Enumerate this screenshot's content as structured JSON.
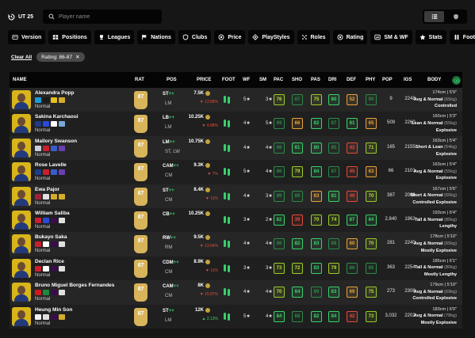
{
  "topbar": {
    "ut_label": "UT 25",
    "search_placeholder": "Player name"
  },
  "filters": [
    {
      "label": "Version",
      "icon": "id-card-icon"
    },
    {
      "label": "Positions",
      "icon": "grid-icon"
    },
    {
      "label": "Leagues",
      "icon": "trophy-icon"
    },
    {
      "label": "Nations",
      "icon": "flag-icon"
    },
    {
      "label": "Clubs",
      "icon": "shield-icon"
    },
    {
      "label": "Price",
      "icon": "coin-icon"
    },
    {
      "label": "PlayStyles",
      "icon": "playstyle-icon"
    },
    {
      "label": "Roles",
      "icon": "roles-icon"
    },
    {
      "label": "Rating",
      "icon": "star-badge-icon"
    },
    {
      "label": "SM & WF",
      "icon": "skill-icon"
    },
    {
      "label": "Stats",
      "icon": "star-icon"
    },
    {
      "label": "Foot",
      "icon": "foot-icon"
    },
    {
      "label": "+",
      "icon": "plus-icon"
    }
  ],
  "active_filters": {
    "clear_label": "Clear All",
    "rating_pill": "Rating: 86-87"
  },
  "columns": [
    "NAME",
    "RAT",
    "POS",
    "PRICE",
    "FOOT",
    "WF",
    "SM",
    "PAC",
    "SHO",
    "PAS",
    "DRI",
    "DEF",
    "PHY",
    "POP",
    "IGS",
    "BODY"
  ],
  "players": [
    {
      "name": "Alexandra Popp",
      "version": "Normal",
      "rating": "87",
      "position": "ST",
      "plus": "++",
      "alt_positions": "LM",
      "price": "7.5K",
      "change": "▼ 13.88%",
      "trend": "down",
      "wf": "5★",
      "sm": "3★",
      "pac": "76",
      "sho": "87",
      "pas": "75",
      "dri": "80",
      "def": "52",
      "phy": "90",
      "pop": "9",
      "igs": "2248",
      "height": "174cm | 5'9\"",
      "body_type": "Avg & Normal",
      "weight": "(65kg)",
      "accelerate": "Controlled",
      "badges": [
        "#1d9bd8",
        "#1a1a1a",
        "#e6c21f",
        "#d6ac2a"
      ]
    },
    {
      "name": "Sakina Karchaoui",
      "version": "Normal",
      "rating": "87",
      "position": "LB",
      "plus": "++",
      "alt_positions": "LM",
      "price": "10.25K",
      "change": "▼ 4.88%",
      "trend": "down",
      "wf": "4★",
      "sm": "5★",
      "pac": "89",
      "sho": "66",
      "pas": "82",
      "dri": "87",
      "def": "81",
      "phy": "65",
      "pop": "509",
      "igs": "2260",
      "height": "160cm | 5'3\"",
      "body_type": "Lean & Normal",
      "weight": "(55kg)",
      "accelerate": "Explosive",
      "badges": [
        "#1f3a8a",
        "#2a4bd7",
        "#ffffff",
        "#7aa8d8"
      ]
    },
    {
      "name": "Mallory Swanson",
      "version": "Normal",
      "rating": "87",
      "position": "LM",
      "plus": "++",
      "alt_positions": "ST, LW",
      "price": "10.75K",
      "change": "",
      "trend": "none",
      "wf": "4★",
      "sm": "4★",
      "pac": "89",
      "sho": "81",
      "pas": "80",
      "dri": "85",
      "def": "42",
      "phy": "71",
      "pop": "165",
      "igs": "2155",
      "height": "163cm | 5'4\"",
      "body_type": "Short & Lean",
      "weight": "(54kg)",
      "accelerate": "Explosive",
      "badges": [
        "#c9ced8",
        "#c8202f",
        "#3b5bcc",
        "#6a3fb0"
      ]
    },
    {
      "name": "Rose Lavelle",
      "version": "Normal",
      "rating": "87",
      "position": "CAM",
      "plus": "++",
      "alt_positions": "CM",
      "price": "9.3K",
      "change": "▼ 7%",
      "trend": "down",
      "wf": "5★",
      "sm": "4★",
      "pac": "86",
      "sho": "79",
      "pas": "84",
      "dri": "87",
      "def": "45",
      "phy": "63",
      "pop": "66",
      "igs": "2101",
      "height": "163cm | 5'4\"",
      "body_type": "Avg & Normal",
      "weight": "(55kg)",
      "accelerate": "Explosive",
      "badges": [
        "#1c3c8c",
        "#c8202f",
        "#3b5bcc",
        "#6a3fb0"
      ]
    },
    {
      "name": "Ewa Pajor",
      "version": "Normal",
      "rating": "87",
      "position": "ST",
      "plus": "++",
      "alt_positions": "CM",
      "price": "8.4K",
      "change": "▼ 11%",
      "trend": "down",
      "wf": "4★",
      "sm": "3★",
      "pac": "89",
      "sho": "89",
      "pas": "63",
      "dri": "81",
      "def": "40",
      "phy": "70",
      "pop": "387",
      "igs": "2006",
      "height": "167cm | 5'6\"",
      "body_type": "Short & Normal",
      "weight": "(60kg)",
      "accelerate": "Controlled Explosive",
      "badges": [
        "#a1233a",
        "#e0e0e0",
        "#d6ac2a",
        "#d6ac2a"
      ]
    },
    {
      "name": "William Saliba",
      "version": "Normal",
      "rating": "87",
      "position": "CB",
      "plus": "++",
      "alt_positions": "",
      "price": "10.25K",
      "change": "",
      "trend": "none",
      "wf": "3★",
      "sm": "2★",
      "pac": "82",
      "sho": "39",
      "pas": "70",
      "dri": "74",
      "def": "87",
      "def_class": "g2",
      "phy": "84",
      "pop": "2,840",
      "igs": "1962",
      "height": "193cm | 6'4\"",
      "body_type": "Tall & Normal",
      "weight": "(85kg)",
      "accelerate": "Lengthy",
      "badges": [
        "#c8202f",
        "#2a4bd7",
        "#3b0c4a",
        "#e0e0e0"
      ]
    },
    {
      "name": "Bukayo Saka",
      "version": "Normal",
      "rating": "87",
      "position": "RW",
      "plus": "++",
      "alt_positions": "RM",
      "price": "9.5K",
      "change": "▼ 13.64%",
      "trend": "down",
      "wf": "4★",
      "sm": "4★",
      "pac": "86",
      "sho": "82",
      "pas": "83",
      "dri": "88",
      "def": "60",
      "phy": "70",
      "pop": "281",
      "igs": "2240",
      "height": "178cm | 5'10\"",
      "body_type": "Avg & Normal",
      "weight": "(65kg)",
      "accelerate": "Mostly Explosive",
      "badges": [
        "#c8202f",
        "#ffffff",
        "#3b0c4a",
        "#e0e0e0"
      ]
    },
    {
      "name": "Declan Rice",
      "version": "Normal",
      "rating": "87",
      "position": "CDM",
      "plus": "++",
      "alt_positions": "CM",
      "price": "8.9K",
      "change": "▼ 11%",
      "trend": "down",
      "wf": "3★",
      "sm": "3★",
      "pac": "73",
      "sho": "72",
      "pas": "83",
      "pas_class": "g2",
      "dri": "79",
      "def": "86",
      "phy": "85",
      "pop": "363",
      "igs": "2254",
      "height": "185cm | 6'1\"",
      "body_type": "Tall & Normal",
      "weight": "(80kg)",
      "accelerate": "Mostly Lengthy",
      "badges": [
        "#c8202f",
        "#ffffff",
        "#3b0c4a",
        "#e0e0e0"
      ]
    },
    {
      "name": "Bruno Miguel Borges Fernandes",
      "version": "Normal",
      "rating": "87",
      "position": "CAM",
      "plus": "++",
      "alt_positions": "CM",
      "price": "8K",
      "change": "▼ 15.87%",
      "trend": "down",
      "wf": "4★",
      "sm": "4★",
      "pac": "70",
      "sho": "84",
      "pas": "89",
      "dri": "83",
      "def": "69",
      "phy": "75",
      "pop": "273",
      "igs": "2308",
      "height": "179cm | 5'10\"",
      "body_type": "Avg & Normal",
      "weight": "(69kg)",
      "accelerate": "Controlled Explosive",
      "badges": [
        "#d01a1a",
        "#1e8a3a",
        "#3b0c4a",
        "#e0e0e0"
      ]
    },
    {
      "name": "Heung Min Son",
      "version": "Normal",
      "rating": "87",
      "position": "ST",
      "plus": "++",
      "alt_positions": "LM",
      "price": "12K",
      "change": "▲ 2.13%",
      "trend": "up",
      "wf": "5★",
      "sm": "4★",
      "pac": "84",
      "sho": "88",
      "pas": "82",
      "dri": "84",
      "def": "42",
      "phy": "73",
      "pop": "3,032",
      "igs": "2202",
      "height": "183cm | 6'0\"",
      "body_type": "Avg & Normal",
      "weight": "(78kg)",
      "accelerate": "Mostly Explosive",
      "badges": [
        "#f2f2f2",
        "#e0e0e0",
        "#3b0c4a",
        "#d6ac2a"
      ]
    }
  ]
}
